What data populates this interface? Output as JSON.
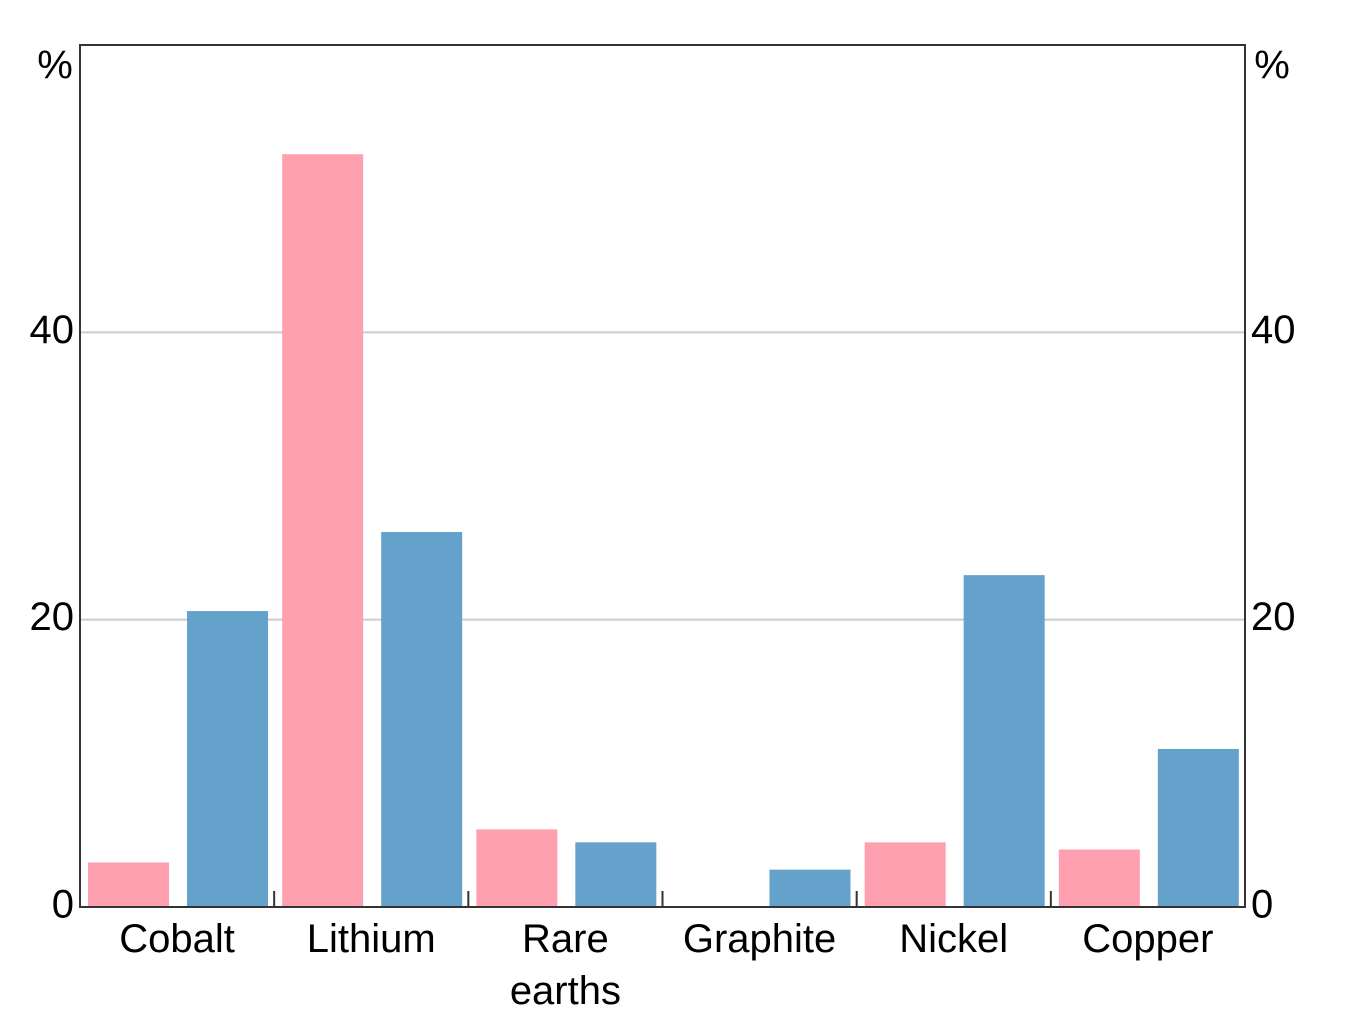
{
  "chart_data": {
    "type": "bar",
    "categories": [
      "Cobalt",
      "Lithium",
      "Rare earths",
      "Graphite",
      "Nickel",
      "Copper"
    ],
    "series": [
      {
        "color": "#ffa0b0",
        "values": [
          3.1,
          52.4,
          5.4,
          null,
          4.5,
          4.0
        ]
      },
      {
        "color": "#65a2cb",
        "values": [
          20.6,
          26.1,
          4.5,
          2.6,
          23.1,
          11.0
        ]
      }
    ],
    "y_unit": "%",
    "ylim": [
      0,
      60
    ],
    "yticks": [
      0,
      20,
      40
    ],
    "grid": true
  }
}
